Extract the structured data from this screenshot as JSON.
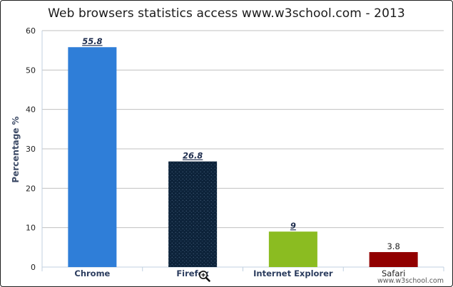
{
  "chart_data": {
    "type": "bar",
    "title": "Web browsers statistics access www.w3school.com - 2013",
    "xlabel": "",
    "ylabel": "Percentage %",
    "categories": [
      "Chrome",
      "Firefox",
      "Internet Explorer",
      "Safari"
    ],
    "values": [
      55.8,
      26.8,
      9,
      3.8
    ],
    "data_labels": [
      "55.8",
      "26.8",
      "9",
      "3.8"
    ],
    "ylim": [
      0,
      60
    ],
    "yticks": [
      0,
      10,
      20,
      30,
      40,
      50,
      60
    ],
    "grid": true,
    "legend": "none",
    "colors": [
      "#2f7ed8",
      "#0d233a",
      "#8bbc21",
      "#910000"
    ],
    "annotation": "www.w3school.com"
  }
}
